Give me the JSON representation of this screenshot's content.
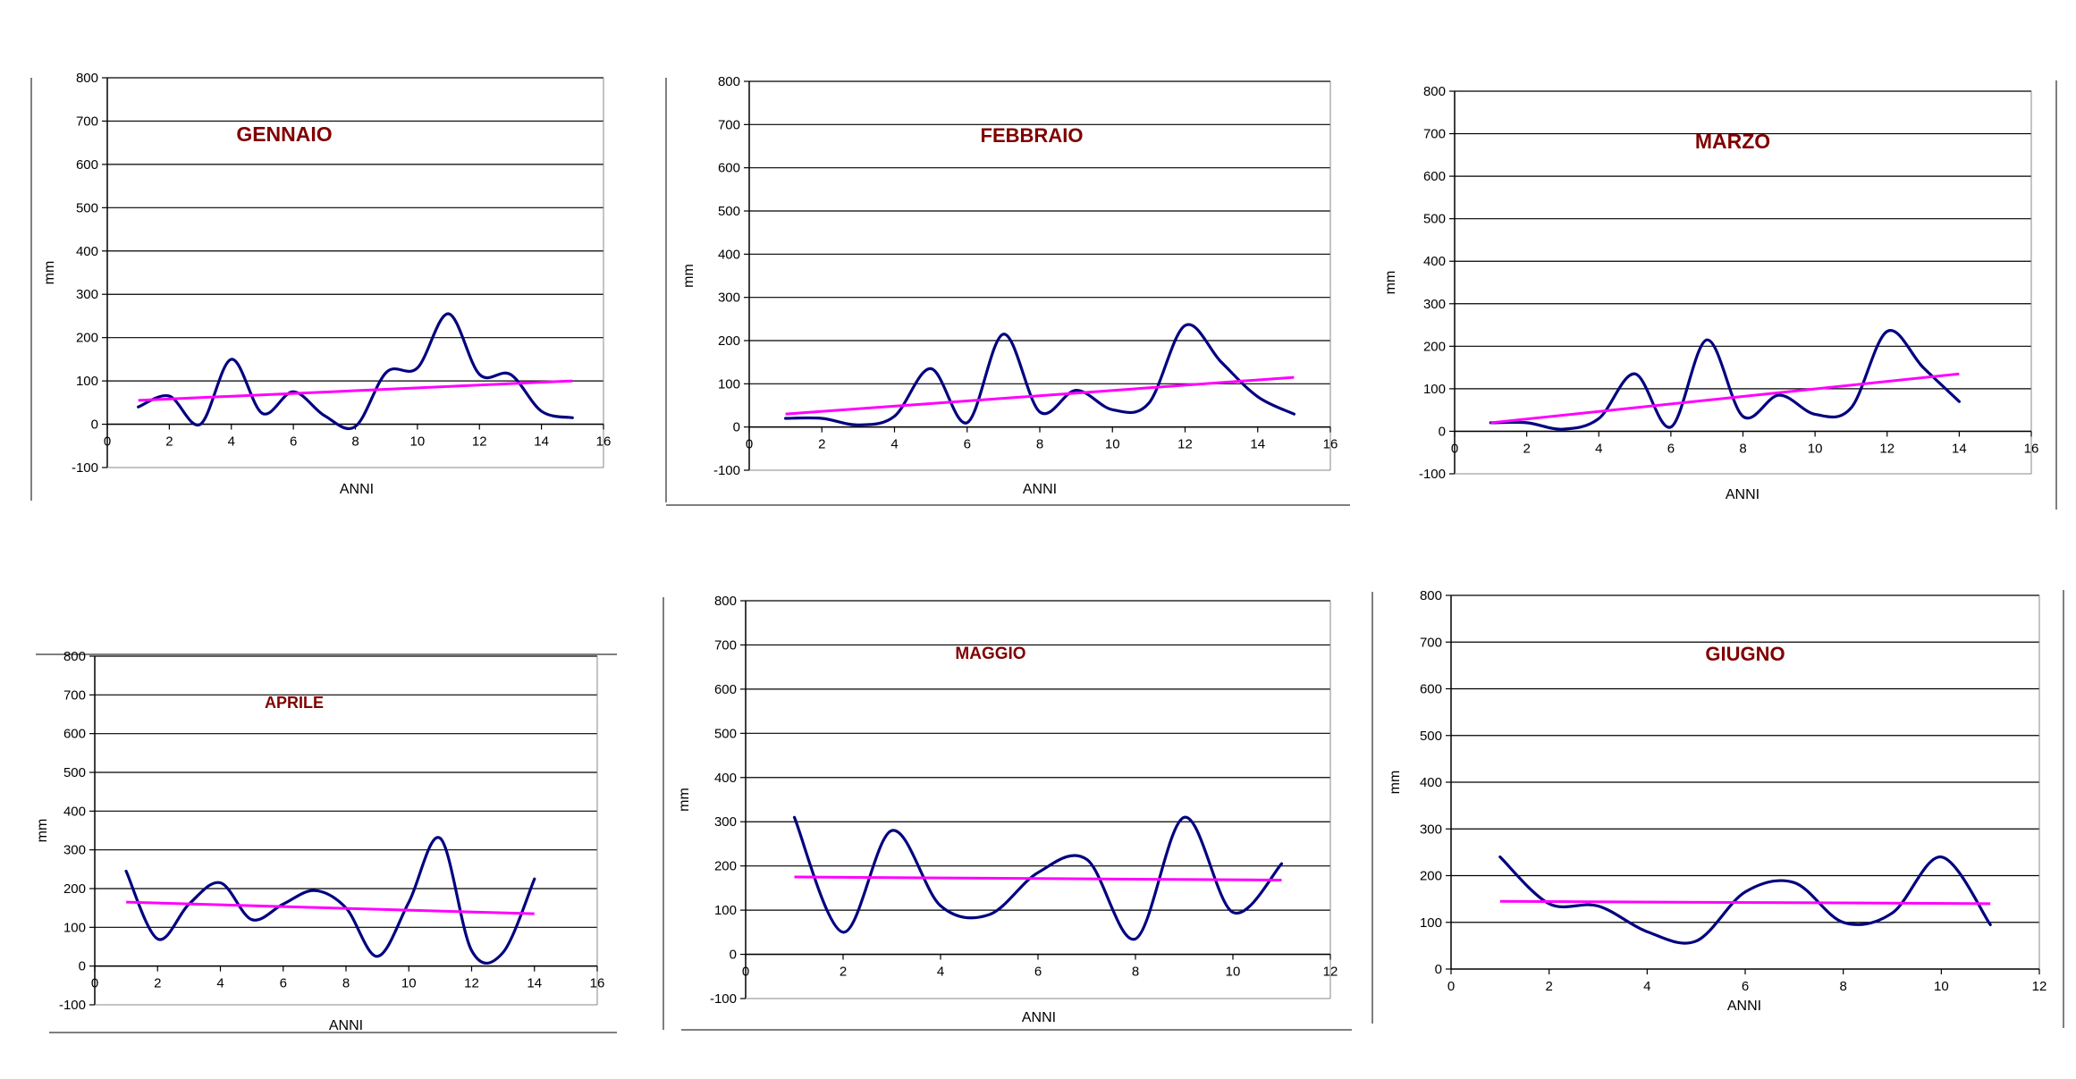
{
  "colors": {
    "series_line": "#000080",
    "trend_line": "#ff00ff",
    "grid": "#000000",
    "title": "#800000"
  },
  "chart_data": [
    {
      "type": "line",
      "title": "GENNAIO",
      "xlabel": "ANNI",
      "ylabel": "mm",
      "xlim": [
        0,
        16
      ],
      "ylim": [
        -100,
        800
      ],
      "xticks": [
        0,
        2,
        4,
        6,
        8,
        10,
        12,
        14,
        16
      ],
      "yticks": [
        -100,
        0,
        100,
        200,
        300,
        400,
        500,
        600,
        700,
        800
      ],
      "grid": true,
      "series": [
        {
          "role": "data",
          "x": [
            1,
            2,
            3,
            4,
            5,
            6,
            7,
            8,
            9,
            10,
            11,
            12,
            13,
            14,
            15
          ],
          "values": [
            40,
            65,
            0,
            150,
            25,
            75,
            20,
            -5,
            120,
            130,
            255,
            115,
            115,
            30,
            15
          ]
        },
        {
          "role": "trend",
          "x": [
            1,
            15
          ],
          "values": [
            55,
            100
          ]
        }
      ]
    },
    {
      "type": "line",
      "title": "FEBBRAIO",
      "xlabel": "ANNI",
      "ylabel": "mm",
      "xlim": [
        0,
        16
      ],
      "ylim": [
        -100,
        800
      ],
      "xticks": [
        0,
        2,
        4,
        6,
        8,
        10,
        12,
        14,
        16
      ],
      "yticks": [
        -100,
        0,
        100,
        200,
        300,
        400,
        500,
        600,
        700,
        800
      ],
      "grid": true,
      "series": [
        {
          "role": "data",
          "x": [
            1,
            2,
            3,
            4,
            5,
            6,
            7,
            8,
            9,
            10,
            11,
            12,
            13,
            14,
            15
          ],
          "values": [
            20,
            20,
            5,
            25,
            135,
            10,
            215,
            35,
            85,
            40,
            55,
            235,
            150,
            70,
            30
          ]
        },
        {
          "role": "trend",
          "x": [
            1,
            15
          ],
          "values": [
            30,
            115
          ]
        }
      ]
    },
    {
      "type": "line",
      "title": "MARZO",
      "xlabel": "ANNI",
      "ylabel": "mm",
      "xlim": [
        0,
        16
      ],
      "ylim": [
        -100,
        800
      ],
      "xticks": [
        0,
        2,
        4,
        6,
        8,
        10,
        12,
        14,
        16
      ],
      "yticks": [
        -100,
        0,
        100,
        200,
        300,
        400,
        500,
        600,
        700,
        800
      ],
      "grid": true,
      "series": [
        {
          "role": "data",
          "x": [
            1,
            2,
            3,
            4,
            5,
            6,
            7,
            8,
            9,
            10,
            11,
            12,
            13,
            14
          ],
          "values": [
            20,
            20,
            5,
            30,
            135,
            10,
            215,
            35,
            85,
            40,
            55,
            235,
            150,
            70
          ]
        },
        {
          "role": "trend",
          "x": [
            1,
            14
          ],
          "values": [
            20,
            135
          ]
        }
      ]
    },
    {
      "type": "line",
      "title": "APRILE",
      "xlabel": "ANNI",
      "ylabel": "mm",
      "xlim": [
        0,
        16
      ],
      "ylim": [
        -100,
        800
      ],
      "xticks": [
        0,
        2,
        4,
        6,
        8,
        10,
        12,
        14,
        16
      ],
      "yticks": [
        -100,
        0,
        100,
        200,
        300,
        400,
        500,
        600,
        700,
        800
      ],
      "grid": true,
      "series": [
        {
          "role": "data",
          "x": [
            1,
            2,
            3,
            4,
            5,
            6,
            7,
            8,
            9,
            10,
            11,
            12,
            13,
            14
          ],
          "values": [
            245,
            70,
            160,
            215,
            120,
            160,
            195,
            150,
            25,
            165,
            330,
            40,
            35,
            225
          ]
        },
        {
          "role": "trend",
          "x": [
            1,
            14
          ],
          "values": [
            165,
            135
          ]
        }
      ]
    },
    {
      "type": "line",
      "title": "MAGGIO",
      "xlabel": "ANNI",
      "ylabel": "mm",
      "xlim": [
        0,
        12
      ],
      "ylim": [
        -100,
        800
      ],
      "xticks": [
        0,
        2,
        4,
        6,
        8,
        10,
        12
      ],
      "yticks": [
        -100,
        0,
        100,
        200,
        300,
        400,
        500,
        600,
        700,
        800
      ],
      "grid": true,
      "series": [
        {
          "role": "data",
          "x": [
            1,
            2,
            3,
            4,
            5,
            6,
            7,
            8,
            9,
            10,
            11
          ],
          "values": [
            310,
            50,
            280,
            110,
            90,
            185,
            215,
            35,
            310,
            95,
            205
          ]
        },
        {
          "role": "trend",
          "x": [
            1,
            11
          ],
          "values": [
            175,
            168
          ]
        }
      ]
    },
    {
      "type": "line",
      "title": "GIUGNO",
      "xlabel": "ANNI",
      "ylabel": "mm",
      "xlim": [
        0,
        12
      ],
      "ylim": [
        0,
        800
      ],
      "xticks": [
        0,
        2,
        4,
        6,
        8,
        10,
        12
      ],
      "yticks": [
        0,
        100,
        200,
        300,
        400,
        500,
        600,
        700,
        800
      ],
      "grid": true,
      "series": [
        {
          "role": "data",
          "x": [
            1,
            2,
            3,
            4,
            5,
            6,
            7,
            8,
            9,
            10,
            11
          ],
          "values": [
            240,
            140,
            135,
            80,
            60,
            165,
            185,
            100,
            120,
            240,
            95
          ]
        },
        {
          "role": "trend",
          "x": [
            1,
            11
          ],
          "values": [
            145,
            140
          ]
        }
      ]
    }
  ]
}
